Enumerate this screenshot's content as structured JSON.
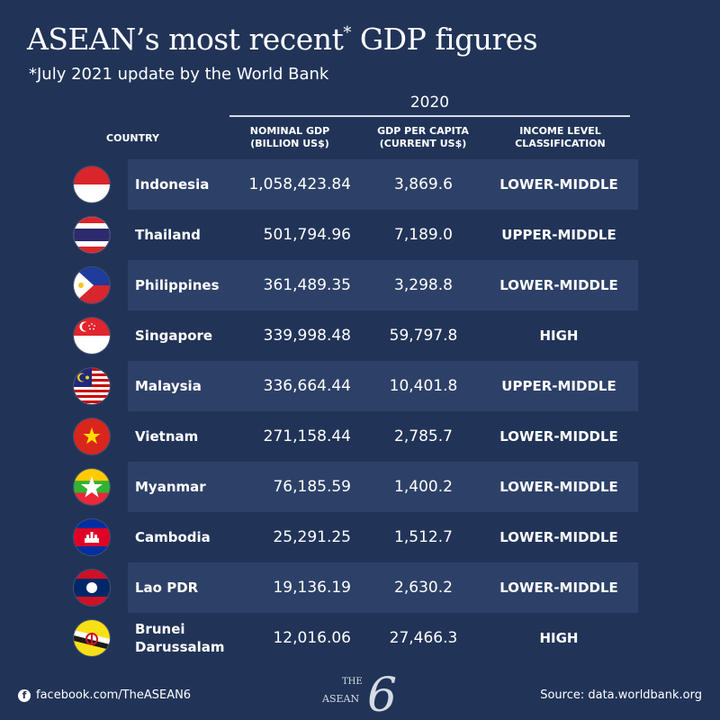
{
  "header": {
    "title": "ASEAN’s most recent",
    "title_mark": "*",
    "title_end": " GDP figures",
    "subtitle": "*July 2021 update by the World Bank"
  },
  "table": {
    "year": "2020",
    "columns": {
      "country": "COUNTRY",
      "nominal_gdp": [
        "NOMINAL GDP",
        "(BILLION US$)"
      ],
      "gdp_per_capita": [
        "GDP PER CAPITA",
        "(CURRENT US$)"
      ],
      "income_level": [
        "INCOME LEVEL",
        "CLASSIFICATION"
      ]
    }
  },
  "chart_data": {
    "type": "table",
    "columns": [
      "COUNTRY",
      "NOMINAL GDP (BILLION US$)",
      "GDP PER CAPITA (CURRENT US$)",
      "INCOME LEVEL CLASSIFICATION"
    ],
    "rows": [
      {
        "country": "Indonesia",
        "flag": "indonesia-flag",
        "nominal_gdp": "1,058,423.84",
        "gdp_per_capita": "3,869.6",
        "income_level": "LOWER-MIDDLE"
      },
      {
        "country": "Thailand",
        "flag": "thailand-flag",
        "nominal_gdp": "501,794.96",
        "gdp_per_capita": "7,189.0",
        "income_level": "UPPER-MIDDLE"
      },
      {
        "country": "Philippines",
        "flag": "philippines-flag",
        "nominal_gdp": "361,489.35",
        "gdp_per_capita": "3,298.8",
        "income_level": "LOWER-MIDDLE"
      },
      {
        "country": "Singapore",
        "flag": "singapore-flag",
        "nominal_gdp": "339,998.48",
        "gdp_per_capita": "59,797.8",
        "income_level": "HIGH"
      },
      {
        "country": "Malaysia",
        "flag": "malaysia-flag",
        "nominal_gdp": "336,664.44",
        "gdp_per_capita": "10,401.8",
        "income_level": "UPPER-MIDDLE"
      },
      {
        "country": "Vietnam",
        "flag": "vietnam-flag",
        "nominal_gdp": "271,158.44",
        "gdp_per_capita": "2,785.7",
        "income_level": "LOWER-MIDDLE"
      },
      {
        "country": "Myanmar",
        "flag": "myanmar-flag",
        "nominal_gdp": "76,185.59",
        "gdp_per_capita": "1,400.2",
        "income_level": "LOWER-MIDDLE"
      },
      {
        "country": "Cambodia",
        "flag": "cambodia-flag",
        "nominal_gdp": "25,291.25",
        "gdp_per_capita": "1,512.7",
        "income_level": "LOWER-MIDDLE"
      },
      {
        "country": "Lao PDR",
        "flag": "laos-flag",
        "nominal_gdp": "19,136.19",
        "gdp_per_capita": "2,630.2",
        "income_level": "LOWER-MIDDLE"
      },
      {
        "country": "Brunei\nDarussalam",
        "flag": "brunei-flag",
        "nominal_gdp": "12,016.06",
        "gdp_per_capita": "27,466.3",
        "income_level": "HIGH"
      }
    ]
  },
  "footer": {
    "facebook_icon": "facebook-icon",
    "facebook": "facebook.com/TheASEAN6",
    "source": "Source: data.worldbank.org",
    "logo_the": "THE",
    "logo_asean": "ASEAN",
    "logo_six": "6"
  },
  "colors": {
    "background": "#213458",
    "band": "#2d4168"
  }
}
